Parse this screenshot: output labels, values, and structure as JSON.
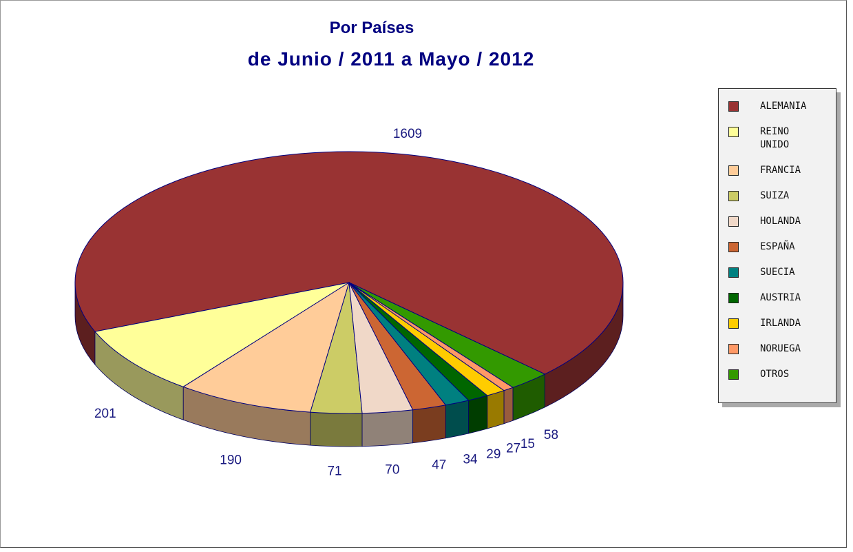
{
  "chart_data": {
    "type": "pie",
    "title": "Por Países",
    "subtitle": "de Junio / 2011 a Mayo / 2012",
    "categories": [
      "ALEMANIA",
      "REINO UNIDO",
      "FRANCIA",
      "SUIZA",
      "HOLANDA",
      "ESPAÑA",
      "SUECIA",
      "AUSTRIA",
      "IRLANDA",
      "NORUEGA",
      "OTROS"
    ],
    "values": [
      1609,
      201,
      190,
      71,
      70,
      47,
      34,
      29,
      27,
      15,
      58
    ],
    "colors": [
      "#993333",
      "#ffff99",
      "#ffcc99",
      "#cccc66",
      "#f0d8c8",
      "#cc6633",
      "#008080",
      "#006600",
      "#ffcc00",
      "#ff9966",
      "#339900"
    ],
    "legend": "right"
  }
}
